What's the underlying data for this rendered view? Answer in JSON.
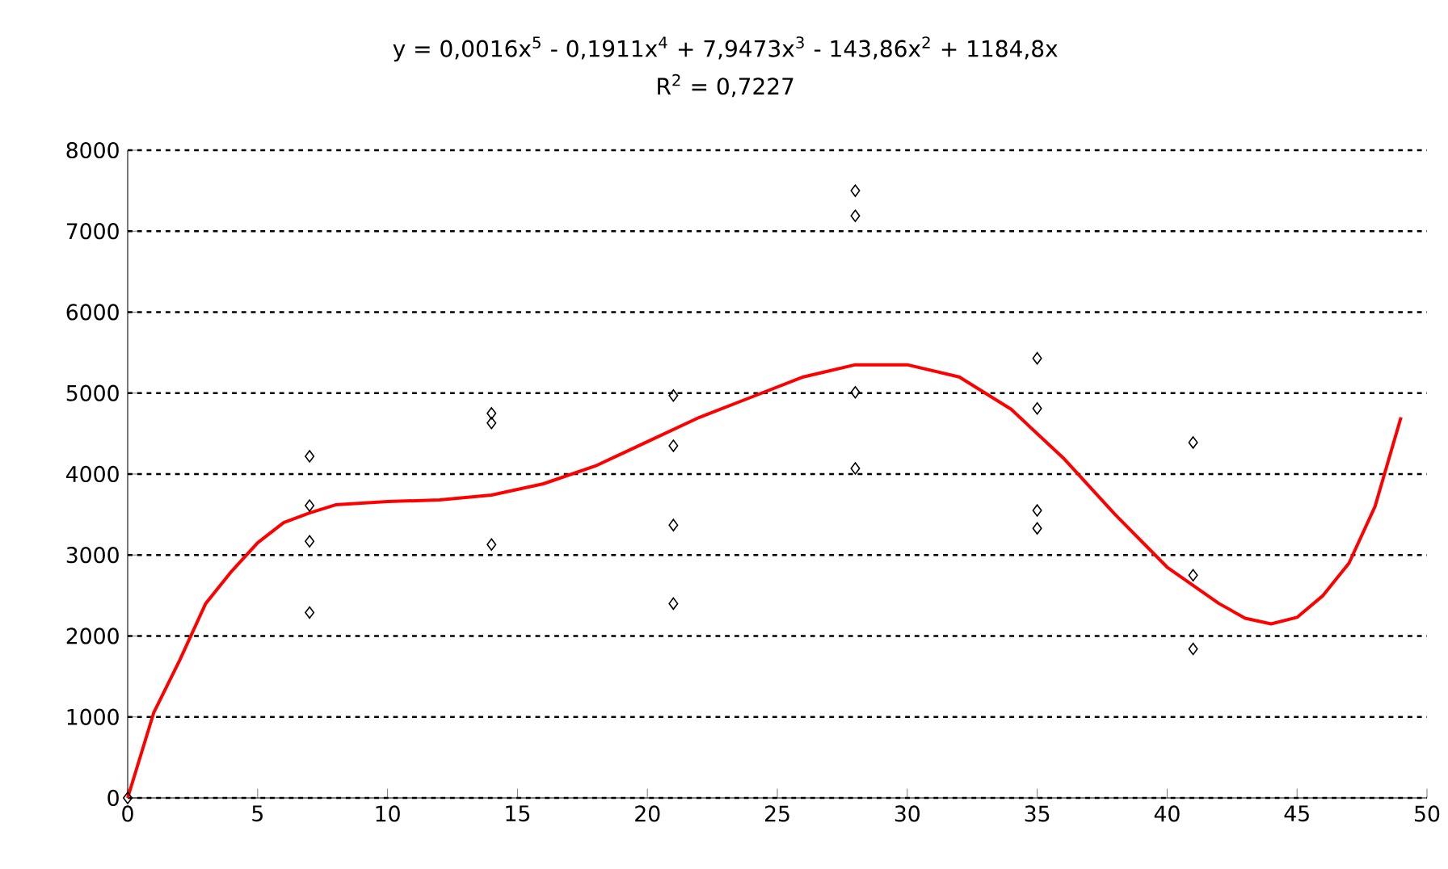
{
  "chart_data": {
    "type": "scatter",
    "annotations": [
      "y = 0,0016x$^{5}$ - 0,1911x$^{4}$ + 7,9473x$^{3}$ - 143,86x$^{2}$ + 1184,8x",
      "R$^{2}$ = 0,7227"
    ],
    "xlim": [
      0,
      50
    ],
    "xticks": [
      0,
      5,
      10,
      15,
      20,
      25,
      30,
      35,
      40,
      45,
      50
    ],
    "ylim": [
      0,
      8000
    ],
    "yticks": [
      0,
      1000,
      2000,
      3000,
      4000,
      5000,
      6000,
      7000,
      8000
    ],
    "grid": "y",
    "marker": "diamond",
    "series": [
      {
        "color": "#000000",
        "x": [
          0,
          7,
          7,
          7,
          7,
          14,
          14,
          14,
          21,
          21,
          21,
          21,
          28,
          28,
          28,
          28,
          35,
          35,
          35,
          35,
          41,
          41,
          41
        ],
        "values": [
          0,
          4220,
          3610,
          3170,
          2290,
          4750,
          4630,
          3130,
          4970,
          4350,
          3370,
          2400,
          7500,
          7190,
          5010,
          4070,
          5430,
          4810,
          3550,
          3330,
          4390,
          2750,
          1840
        ]
      },
      {
        "type": "line",
        "color": "#ff0000",
        "marker": "none",
        "x": [
          0,
          1,
          2,
          3,
          4,
          5,
          6,
          7,
          8,
          10,
          12,
          14,
          16,
          18,
          20,
          22,
          24,
          26,
          28,
          30,
          32,
          34,
          36,
          38,
          40,
          42,
          43,
          44,
          45,
          46,
          47,
          48,
          49
        ],
        "values": [
          0,
          1050,
          1700,
          2400,
          2800,
          3150,
          3400,
          3520,
          3620,
          3660,
          3680,
          3740,
          3880,
          4100,
          4400,
          4700,
          4950,
          5200,
          5350,
          5350,
          5200,
          4800,
          4200,
          3500,
          2850,
          2400,
          2220,
          2150,
          2230,
          2500,
          2900,
          3600,
          4700
        ]
      }
    ]
  }
}
